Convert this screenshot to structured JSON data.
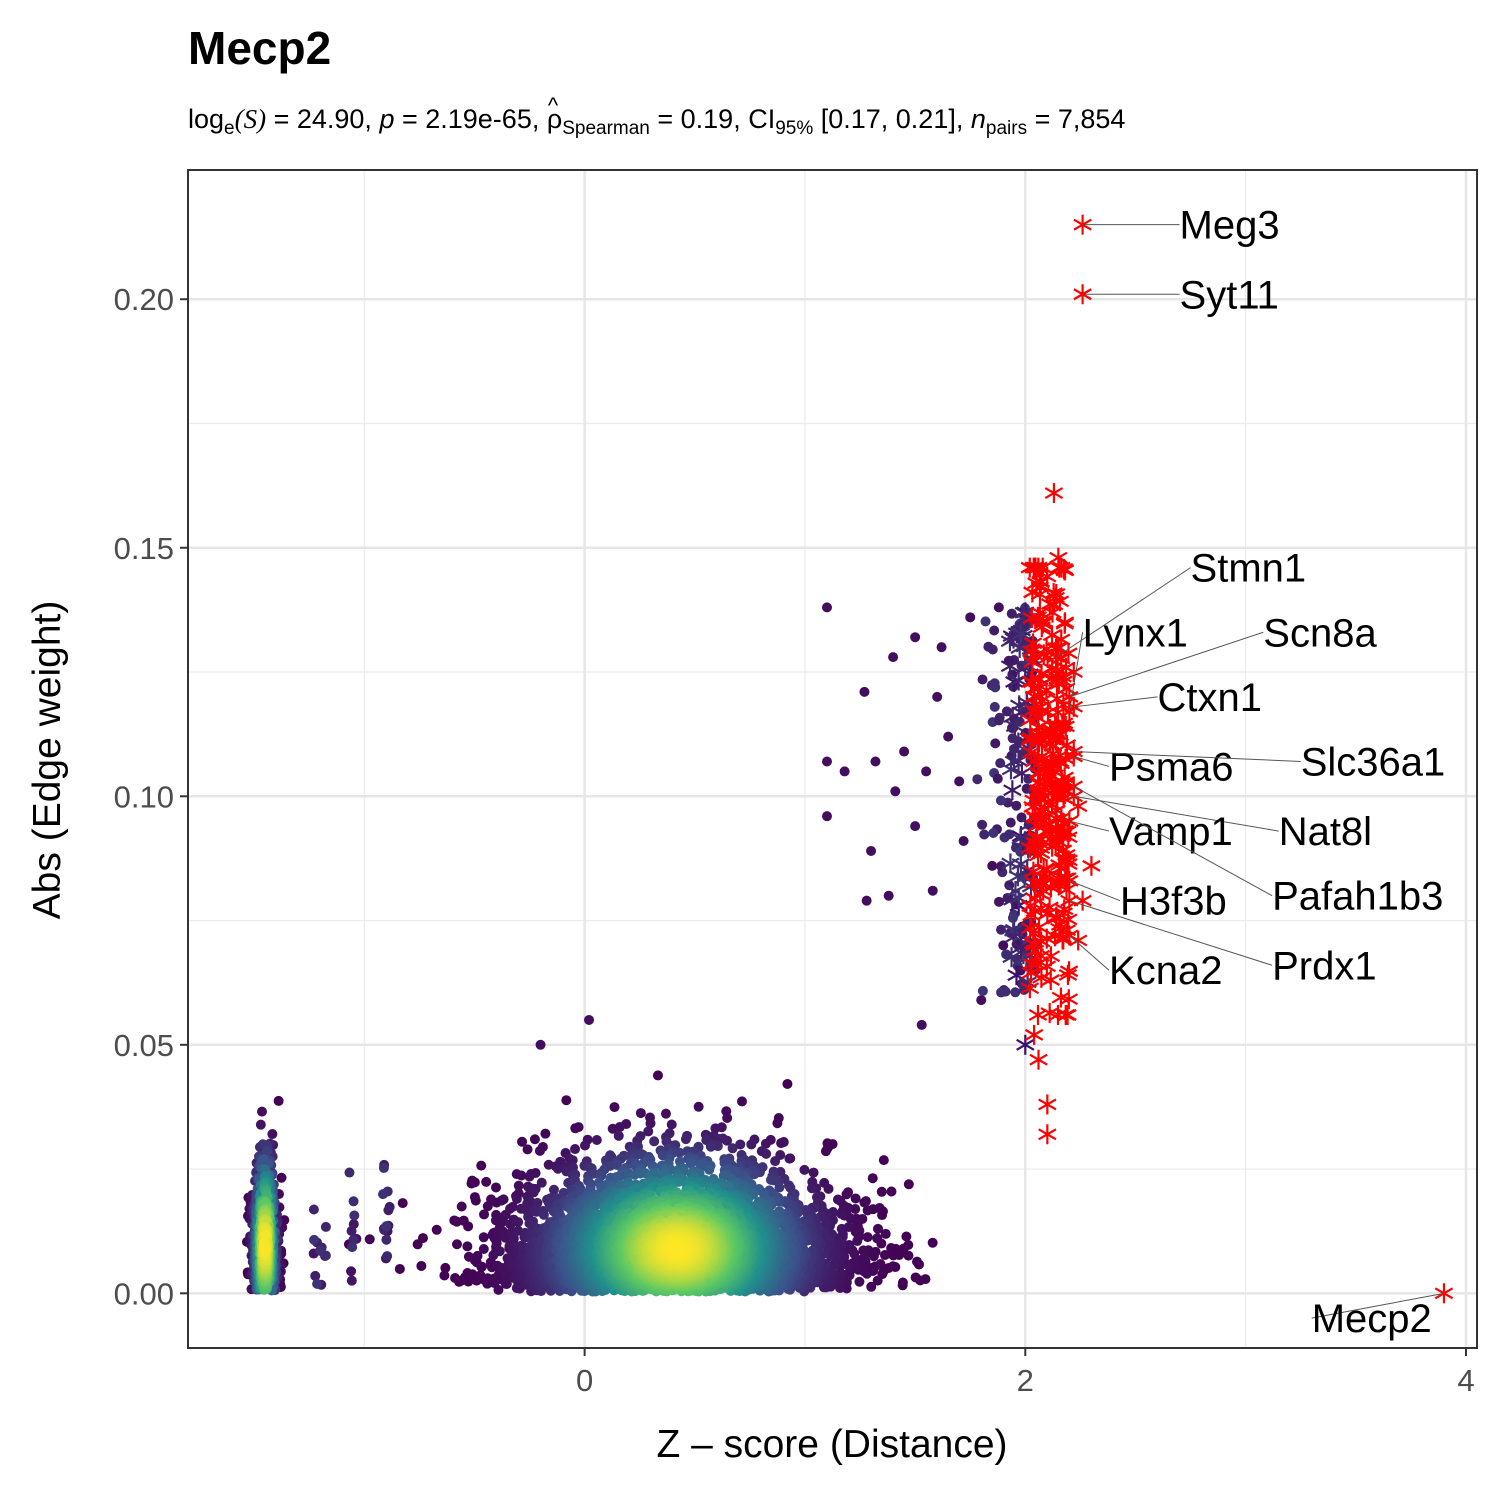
{
  "chart_data": {
    "type": "scatter",
    "title": "Mecp2",
    "subtitle": {
      "prefix": "log",
      "prefix_sub": "e",
      "s_expr": "(S)",
      "stat_value": " = 24.90, ",
      "p_label": "p",
      "p_value": " = 2.19e-65, ",
      "rho_symbol": "ρ",
      "rho_hat": "^",
      "rho_sub": "Spearman",
      "rho_value": " = 0.19, CI",
      "ci_sub": "95%",
      "ci_value": " [0.17, 0.21], ",
      "n_label": "n",
      "n_sub": "pairs",
      "n_value": " = 7,854"
    },
    "xlabel": "Z – score (Distance)",
    "ylabel": "Abs (Edge weight)",
    "xlim": [
      -1.8,
      4.05
    ],
    "ylim": [
      -0.011,
      0.226
    ],
    "x_ticks": [
      0,
      2,
      4
    ],
    "x_tick_labels": [
      "0",
      "2",
      "4"
    ],
    "x_minor_ticks": [
      -1,
      1,
      3
    ],
    "y_ticks": [
      0,
      0.05,
      0.1,
      0.15,
      0.2
    ],
    "y_tick_labels": [
      "0.00",
      "0.05",
      "0.10",
      "0.15",
      "0.20"
    ],
    "y_minor_ticks": [
      0.025,
      0.075,
      0.125,
      0.175
    ],
    "grid": true,
    "colors": {
      "highlight": "#ff0000",
      "viridis_low": "#440154",
      "viridis_mid": "#21918c",
      "viridis_high": "#fde725",
      "outlier": "#3b0f70"
    },
    "density_clusters": [
      {
        "x_center": 0.42,
        "x_spread": 0.36,
        "y_center": 0.009,
        "y_spread": 0.012,
        "count": 5200
      },
      {
        "x_center": -1.45,
        "x_spread": 0.03,
        "y_center": 0.01,
        "y_spread": 0.012,
        "count": 700
      },
      {
        "x_center": -1.2,
        "x_spread": 0.02,
        "y_center": 0.012,
        "y_spread": 0.008,
        "count": 12
      },
      {
        "x_center": -1.05,
        "x_spread": 0.01,
        "y_center": 0.015,
        "y_spread": 0.008,
        "count": 10
      },
      {
        "x_center": -0.9,
        "x_spread": 0.01,
        "y_center": 0.015,
        "y_spread": 0.008,
        "count": 14
      }
    ],
    "sparse_points": [
      {
        "x": 1.1,
        "y": 0.138
      },
      {
        "x": 1.1,
        "y": 0.096
      },
      {
        "x": 1.1,
        "y": 0.107
      },
      {
        "x": 1.18,
        "y": 0.105
      },
      {
        "x": 1.27,
        "y": 0.121
      },
      {
        "x": 1.4,
        "y": 0.128
      },
      {
        "x": 1.45,
        "y": 0.109
      },
      {
        "x": 1.5,
        "y": 0.132
      },
      {
        "x": 1.62,
        "y": 0.13
      },
      {
        "x": 1.75,
        "y": 0.136
      },
      {
        "x": 1.88,
        "y": 0.138
      },
      {
        "x": 1.32,
        "y": 0.107
      },
      {
        "x": 1.41,
        "y": 0.101
      },
      {
        "x": 1.55,
        "y": 0.105
      },
      {
        "x": 1.6,
        "y": 0.12
      },
      {
        "x": 1.65,
        "y": 0.112
      },
      {
        "x": 1.7,
        "y": 0.103
      },
      {
        "x": 1.5,
        "y": 0.094
      },
      {
        "x": 1.3,
        "y": 0.089
      },
      {
        "x": 1.28,
        "y": 0.079
      },
      {
        "x": 1.38,
        "y": 0.08
      },
      {
        "x": 1.58,
        "y": 0.081
      },
      {
        "x": 1.53,
        "y": 0.054
      },
      {
        "x": 1.8,
        "y": 0.059
      },
      {
        "x": 1.72,
        "y": 0.091
      },
      {
        "x": 1.85,
        "y": 0.086
      },
      {
        "x": 1.9,
        "y": 0.07
      },
      {
        "x": -0.2,
        "y": 0.05
      },
      {
        "x": 0.02,
        "y": 0.055
      }
    ],
    "near_points_x_range": [
      1.75,
      2.05
    ],
    "near_points_y_range": [
      0.06,
      0.138
    ],
    "near_points_count": 130,
    "outlier_stars": [
      {
        "x": 2.0,
        "y": 0.05
      },
      {
        "x": 1.96,
        "y": 0.064
      },
      {
        "x": 1.97,
        "y": 0.078
      },
      {
        "x": 1.95,
        "y": 0.123
      },
      {
        "x": 2.0,
        "y": 0.137
      },
      {
        "x": 1.98,
        "y": 0.092
      }
    ],
    "highlight_stars": [
      {
        "x": 2.13,
        "y": 0.161
      },
      {
        "x": 2.1,
        "y": 0.038
      },
      {
        "x": 2.1,
        "y": 0.032
      },
      {
        "x": 2.06,
        "y": 0.047
      },
      {
        "x": 2.04,
        "y": 0.052
      },
      {
        "x": 2.3,
        "y": 0.086
      },
      {
        "x": 2.24,
        "y": 0.098
      },
      {
        "x": 2.26,
        "y": 0.079
      },
      {
        "x": 2.24,
        "y": 0.071
      },
      {
        "x": 2.22,
        "y": 0.125
      },
      {
        "x": 2.15,
        "y": 0.148
      },
      {
        "x": 2.18,
        "y": 0.135
      }
    ],
    "highlight_band": {
      "x_range": [
        2.02,
        2.2
      ],
      "y_range": [
        0.056,
        0.146
      ],
      "count": 260
    },
    "labeled_genes": [
      {
        "name": "Meg3",
        "x": 2.26,
        "y": 0.215,
        "label_x": 2.7,
        "label_y": 0.215
      },
      {
        "name": "Syt11",
        "x": 2.26,
        "y": 0.201,
        "label_x": 2.7,
        "label_y": 0.201
      },
      {
        "name": "Stmn1",
        "x": 2.14,
        "y": 0.128,
        "label_x": 2.75,
        "label_y": 0.146
      },
      {
        "name": "Lynx1",
        "x": 2.2,
        "y": 0.117,
        "label_x": 2.26,
        "label_y": 0.133
      },
      {
        "name": "Scn8a",
        "x": 2.2,
        "y": 0.12,
        "label_x": 3.08,
        "label_y": 0.133
      },
      {
        "name": "Ctxn1",
        "x": 2.22,
        "y": 0.118,
        "label_x": 2.6,
        "label_y": 0.12
      },
      {
        "name": "Psma6",
        "x": 2.22,
        "y": 0.108,
        "label_x": 2.38,
        "label_y": 0.106
      },
      {
        "name": "Slc36a1",
        "x": 2.22,
        "y": 0.109,
        "label_x": 3.25,
        "label_y": 0.107
      },
      {
        "name": "Nat8l",
        "x": 2.22,
        "y": 0.1,
        "label_x": 3.15,
        "label_y": 0.093
      },
      {
        "name": "Vamp1",
        "x": 2.2,
        "y": 0.095,
        "label_x": 2.38,
        "label_y": 0.093
      },
      {
        "name": "Pafah1b3",
        "x": 2.22,
        "y": 0.102,
        "label_x": 3.12,
        "label_y": 0.08
      },
      {
        "name": "H3f3b",
        "x": 2.2,
        "y": 0.083,
        "label_x": 2.43,
        "label_y": 0.079
      },
      {
        "name": "Prdx1",
        "x": 2.2,
        "y": 0.079,
        "label_x": 3.12,
        "label_y": 0.066
      },
      {
        "name": "Kcna2",
        "x": 2.2,
        "y": 0.072,
        "label_x": 2.38,
        "label_y": 0.065
      },
      {
        "name": "Mecp2",
        "x": 3.9,
        "y": 0.0,
        "label_x": 3.3,
        "label_y": -0.005
      }
    ]
  }
}
